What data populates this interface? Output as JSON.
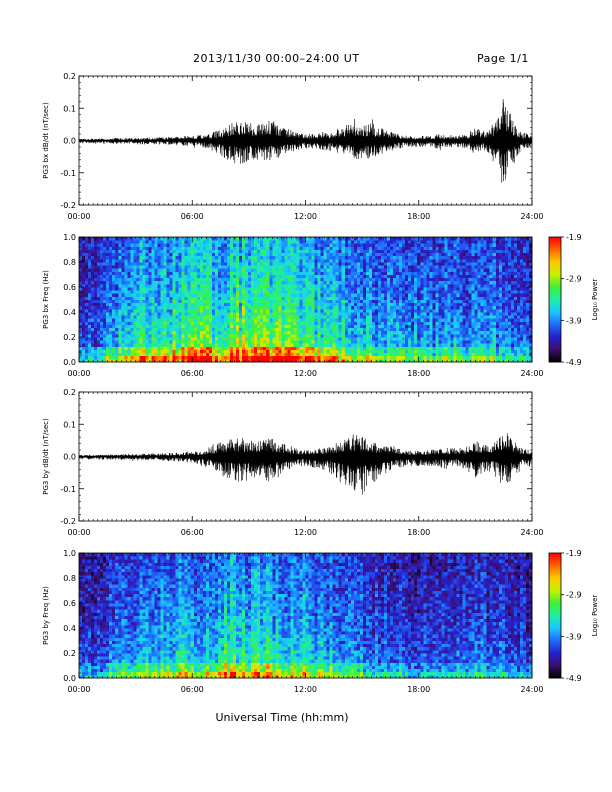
{
  "header": {
    "title": "2013/11/30  00:00–24:00 UT",
    "page": "Page 1/1"
  },
  "xlabel": "Universal Time (hh:mm)",
  "chart_data": [
    {
      "type": "line",
      "ylabel": "PG3 bx dB/dt (nT/sec)",
      "xlim": [
        0,
        24
      ],
      "ylim": [
        -0.2,
        0.2
      ],
      "x_ticks": [
        "00:00",
        "06:00",
        "12:00",
        "18:00",
        "24:00"
      ],
      "y_ticks": [
        "-0.2",
        "-0.1",
        "0.0",
        "0.1",
        "0.2"
      ],
      "series": [
        {
          "hours": [
            0,
            1,
            2,
            3,
            4,
            5,
            6,
            6.5,
            7,
            7.5,
            8,
            8.5,
            9,
            9.5,
            10,
            10.5,
            11,
            11.5,
            12,
            12.5,
            13,
            13.5,
            14,
            14.5,
            15,
            15.5,
            16,
            16.5,
            17,
            17.5,
            18,
            18.5,
            19,
            19.5,
            20,
            20.5,
            21,
            21.5,
            22,
            22.5,
            23,
            23.5,
            24
          ],
          "upper": [
            0.005,
            0.007,
            0.008,
            0.008,
            0.01,
            0.012,
            0.015,
            0.017,
            0.025,
            0.035,
            0.055,
            0.065,
            0.06,
            0.05,
            0.065,
            0.05,
            0.04,
            0.025,
            0.02,
            0.02,
            0.025,
            0.03,
            0.045,
            0.055,
            0.05,
            0.055,
            0.04,
            0.03,
            0.02,
            0.015,
            0.015,
            0.015,
            0.02,
            0.02,
            0.015,
            0.02,
            0.04,
            0.03,
            0.055,
            0.135,
            0.06,
            0.025,
            0.02
          ],
          "lower": [
            -0.008,
            -0.01,
            -0.01,
            -0.012,
            -0.012,
            -0.015,
            -0.018,
            -0.02,
            -0.03,
            -0.045,
            -0.07,
            -0.075,
            -0.065,
            -0.06,
            -0.07,
            -0.06,
            -0.045,
            -0.03,
            -0.025,
            -0.025,
            -0.03,
            -0.035,
            -0.05,
            -0.065,
            -0.055,
            -0.06,
            -0.045,
            -0.035,
            -0.025,
            -0.02,
            -0.02,
            -0.02,
            -0.025,
            -0.025,
            -0.02,
            -0.025,
            -0.045,
            -0.03,
            -0.07,
            -0.135,
            -0.075,
            -0.03,
            -0.025
          ]
        }
      ]
    },
    {
      "type": "heatmap",
      "ylabel": "PG3 bx Freq (Hz)",
      "xlim": [
        0,
        24
      ],
      "ylim": [
        0,
        1
      ],
      "x_ticks": [
        "00:00",
        "06:00",
        "12:00",
        "18:00",
        "24:00"
      ],
      "y_ticks": [
        "0.0",
        "0.2",
        "0.4",
        "0.6",
        "0.8",
        "1.0"
      ],
      "colorbar": {
        "label": "Log₁₀ Power",
        "min": -4.9,
        "max": -1.9,
        "ticks": [
          "-1.9",
          "-2.9",
          "-3.9",
          "-4.9"
        ]
      },
      "activity_hours": [
        0,
        1,
        2,
        3,
        4,
        5,
        6,
        7,
        8,
        9,
        10,
        11,
        12,
        13,
        14,
        15,
        16,
        17,
        18,
        19,
        20,
        21,
        22,
        23,
        24
      ],
      "activity_level": [
        0.35,
        0.4,
        0.6,
        0.7,
        0.72,
        0.75,
        0.8,
        0.8,
        0.82,
        0.85,
        0.85,
        0.8,
        0.78,
        0.7,
        0.62,
        0.58,
        0.55,
        0.5,
        0.5,
        0.48,
        0.5,
        0.52,
        0.5,
        0.45,
        0.4
      ]
    },
    {
      "type": "line",
      "ylabel": "PG3 by dB/dt (nT/sec)",
      "xlim": [
        0,
        24
      ],
      "ylim": [
        -0.2,
        0.2
      ],
      "x_ticks": [
        "00:00",
        "06:00",
        "12:00",
        "18:00",
        "24:00"
      ],
      "y_ticks": [
        "-0.2",
        "-0.1",
        "0.0",
        "0.1",
        "0.2"
      ],
      "series": [
        {
          "hours": [
            0,
            1,
            2,
            3,
            4,
            5,
            6,
            6.5,
            7,
            7.5,
            8,
            8.5,
            9,
            9.5,
            10,
            10.5,
            11,
            11.5,
            12,
            12.5,
            13,
            13.5,
            14,
            14.5,
            15,
            15.5,
            16,
            16.5,
            17,
            17.5,
            18,
            18.5,
            19,
            19.5,
            20,
            20.5,
            21,
            21.5,
            22,
            22.5,
            23,
            23.5,
            24
          ],
          "upper": [
            0.005,
            0.006,
            0.007,
            0.008,
            0.01,
            0.012,
            0.015,
            0.02,
            0.03,
            0.045,
            0.055,
            0.06,
            0.055,
            0.05,
            0.065,
            0.045,
            0.04,
            0.025,
            0.02,
            0.025,
            0.03,
            0.04,
            0.055,
            0.07,
            0.065,
            0.05,
            0.04,
            0.035,
            0.025,
            0.02,
            0.02,
            0.02,
            0.025,
            0.03,
            0.025,
            0.03,
            0.05,
            0.035,
            0.045,
            0.09,
            0.05,
            0.025,
            0.02
          ],
          "lower": [
            -0.008,
            -0.01,
            -0.01,
            -0.012,
            -0.012,
            -0.015,
            -0.02,
            -0.03,
            -0.04,
            -0.06,
            -0.075,
            -0.08,
            -0.075,
            -0.07,
            -0.085,
            -0.07,
            -0.05,
            -0.035,
            -0.03,
            -0.035,
            -0.045,
            -0.06,
            -0.09,
            -0.11,
            -0.12,
            -0.09,
            -0.07,
            -0.05,
            -0.035,
            -0.03,
            -0.03,
            -0.03,
            -0.035,
            -0.04,
            -0.03,
            -0.04,
            -0.07,
            -0.05,
            -0.06,
            -0.1,
            -0.07,
            -0.035,
            -0.03
          ]
        }
      ]
    },
    {
      "type": "heatmap",
      "ylabel": "PG3 by Freq (Hz)",
      "xlim": [
        0,
        24
      ],
      "ylim": [
        0,
        1
      ],
      "x_ticks": [
        "00:00",
        "06:00",
        "12:00",
        "18:00",
        "24:00"
      ],
      "y_ticks": [
        "0.0",
        "0.2",
        "0.4",
        "0.6",
        "0.8",
        "1.0"
      ],
      "colorbar": {
        "label": "Log₁₀ Power",
        "min": -4.9,
        "max": -1.9,
        "ticks": [
          "-1.9",
          "-2.9",
          "-3.9",
          "-4.9"
        ]
      },
      "activity_hours": [
        0,
        1,
        2,
        3,
        4,
        5,
        6,
        7,
        8,
        9,
        10,
        11,
        12,
        13,
        14,
        15,
        16,
        17,
        18,
        19,
        20,
        21,
        22,
        23,
        24
      ],
      "activity_level": [
        0.3,
        0.32,
        0.5,
        0.55,
        0.55,
        0.58,
        0.62,
        0.65,
        0.68,
        0.7,
        0.7,
        0.66,
        0.62,
        0.55,
        0.5,
        0.45,
        0.42,
        0.38,
        0.36,
        0.35,
        0.38,
        0.42,
        0.4,
        0.35,
        0.3
      ]
    }
  ],
  "colors": {
    "trace": "#000000",
    "colormap": [
      "#000000",
      "#3b0f6f",
      "#2a1fc8",
      "#1f6bff",
      "#19c8ff",
      "#1ff0a0",
      "#3cf03c",
      "#c8f000",
      "#ffc800",
      "#ff6400",
      "#ff0000"
    ]
  }
}
